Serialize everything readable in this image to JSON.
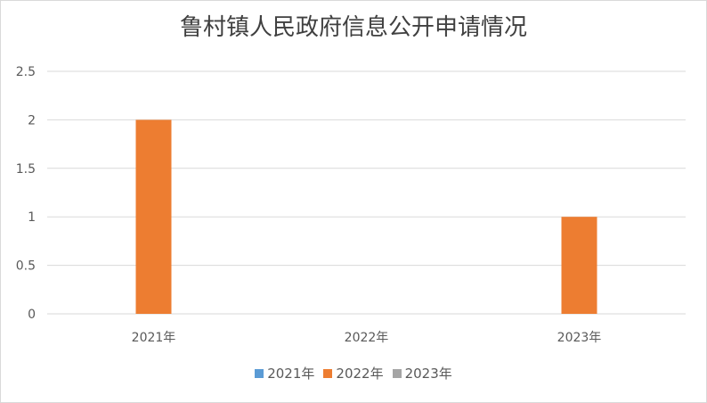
{
  "chart_data": {
    "type": "bar",
    "title": "鲁村镇人民政府信息公开申请情况",
    "categories": [
      "2021年",
      "2022年",
      "2023年"
    ],
    "series": [
      {
        "name": "2021年",
        "color": "#5b9bd5",
        "values": [
          0,
          0,
          0
        ]
      },
      {
        "name": "2022年",
        "color": "#ed7d31",
        "values": [
          2,
          0,
          1
        ]
      },
      {
        "name": "2023年",
        "color": "#a5a5a5",
        "values": [
          0,
          0,
          0
        ]
      }
    ],
    "yticks": [
      "0",
      "0.5",
      "1",
      "1.5",
      "2",
      "2.5"
    ],
    "ylim": [
      0,
      2.5
    ],
    "grid": true,
    "legend": "bottom",
    "xlabel": "",
    "ylabel": ""
  }
}
